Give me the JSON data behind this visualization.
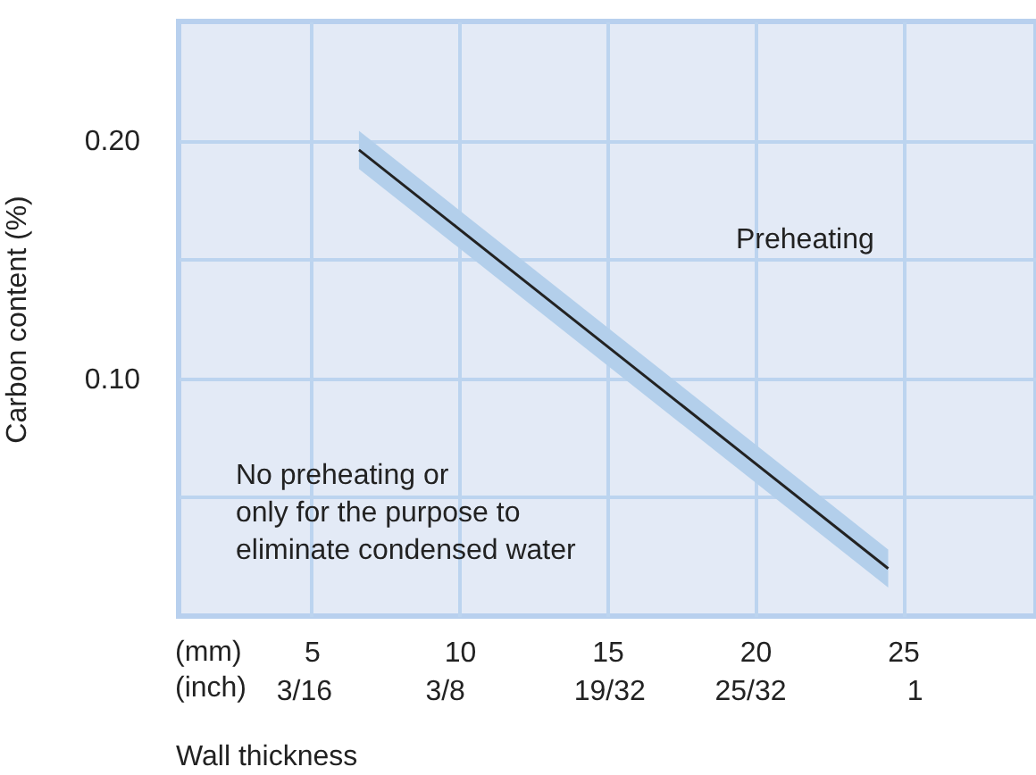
{
  "chart_data": {
    "type": "line",
    "xlabel": "Wall thickness",
    "ylabel": "Carbon content (%)",
    "xlim": [
      0.5,
      29.5
    ],
    "ylim": [
      0,
      0.25
    ],
    "xticks": [
      5,
      10,
      15,
      20,
      25
    ],
    "x2lim": [
      0.02,
      1.161
    ],
    "x2ticks": [
      {
        "value": 0.1875,
        "label": "3/16"
      },
      {
        "value": 0.375,
        "label": "3/8"
      },
      {
        "value": 0.59375,
        "label": "19/32"
      },
      {
        "value": 0.78125,
        "label": "25/32"
      },
      1
    ],
    "yticks": [
      {
        "value": 0.05,
        "label": null
      },
      {
        "value": 0.1,
        "label": "0.10"
      },
      {
        "value": 0.15,
        "label": null
      },
      {
        "value": 0.2,
        "label": "0.20"
      }
    ],
    "grid": true,
    "series": [
      {
        "color": "#222222",
        "x": [
          6.6,
          24.5
        ],
        "values": [
          0.196,
          0.02
        ],
        "lower": [
          0.188,
          0.012
        ],
        "upper": [
          0.204,
          0.028
        ]
      }
    ],
    "annotations": [
      "(mm)\n(inch)",
      "Preheating",
      "No preheating or\nonly for the purpose to\neliminate condensed water"
    ]
  }
}
